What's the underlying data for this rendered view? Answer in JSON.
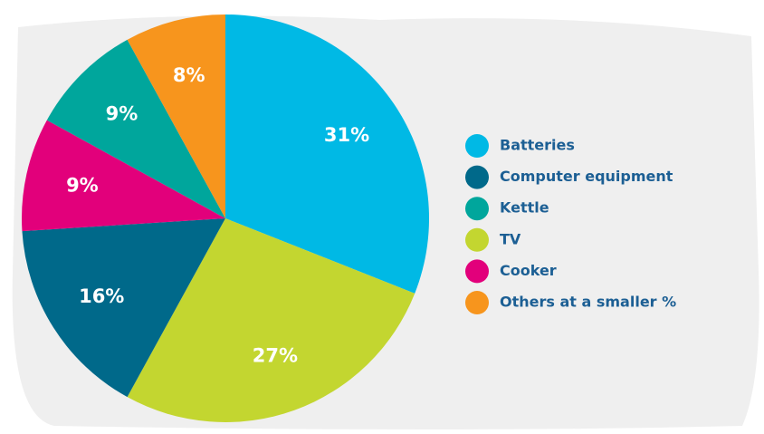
{
  "chart_data": {
    "type": "pie",
    "categories": [
      "Batteries",
      "TV",
      "Computer equipment",
      "Cooker",
      "Kettle",
      "Others at a smaller %"
    ],
    "values": [
      31,
      27,
      16,
      9,
      9,
      8
    ],
    "value_labels": [
      "31%",
      "27%",
      "16%",
      "9%",
      "9%",
      "8%"
    ],
    "colors": [
      "#00b9e5",
      "#c3d630",
      "#00698a",
      "#e2007b",
      "#00a69c",
      "#f7951d"
    ],
    "legend_order": [
      0,
      2,
      4,
      1,
      3,
      5
    ],
    "legend": "right"
  }
}
